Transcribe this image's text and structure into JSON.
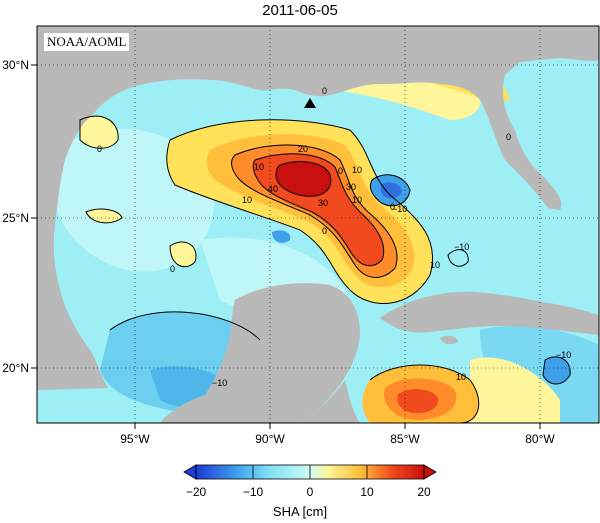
{
  "map": {
    "title": "2011-06-05",
    "credit": "NOAA/AOML",
    "colorbar": {
      "label": "SHA [cm]",
      "ticks": [
        "−20",
        "−10",
        "0",
        "10",
        "20"
      ],
      "range": [
        -20,
        20
      ],
      "colors": [
        "#1f3ad8",
        "#2f6fe0",
        "#3fa0ea",
        "#5cc8f2",
        "#8ae6f4",
        "#b8f4f6",
        "#fff7a8",
        "#ffe25a",
        "#ffbf3a",
        "#ff8c2a",
        "#f04a1e",
        "#c8100f"
      ]
    },
    "axes": {
      "lon_ticks": [
        "95°W",
        "90°W",
        "85°W",
        "80°W"
      ],
      "lat_ticks": [
        "30°N",
        "25°N",
        "20°N"
      ]
    },
    "contour_labels": [
      "0",
      "0",
      "0",
      "0",
      "10",
      "10",
      "10",
      "10",
      "20",
      "30",
      "40",
      "30",
      "10",
      "0",
      "−10",
      "−10",
      "−10",
      "−10",
      "0",
      "10",
      "0"
    ],
    "colors": {
      "land": "#b9b9b9",
      "sea_base": "#9eeef6",
      "marker": "#000000"
    }
  }
}
